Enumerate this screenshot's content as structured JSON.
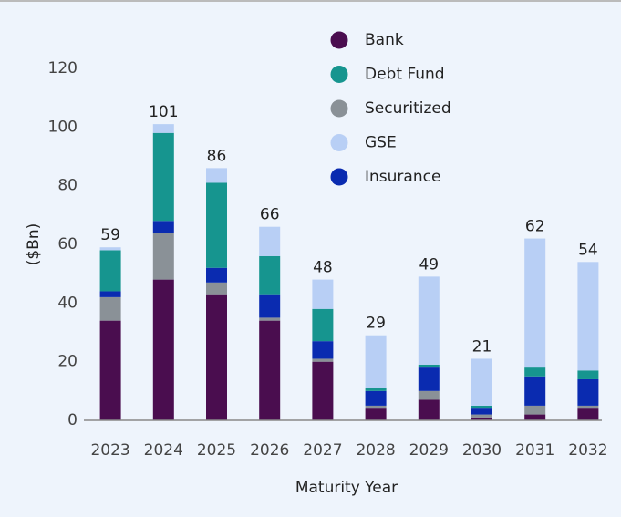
{
  "chart_data": {
    "type": "stacked_bar",
    "y_label": "($Bn)",
    "x_label": "Maturity Year",
    "categories": [
      "2023",
      "2024",
      "2025",
      "2026",
      "2027",
      "2028",
      "2029",
      "2030",
      "2031",
      "2032"
    ],
    "series": [
      {
        "name": "Bank",
        "color": "#4a0d4f",
        "values": [
          34,
          48,
          43,
          34,
          20,
          4,
          7,
          1,
          2,
          4
        ]
      },
      {
        "name": "Securitized",
        "color": "#8a9197",
        "values": [
          8,
          16,
          4,
          1,
          1,
          1,
          3,
          1,
          3,
          1
        ]
      },
      {
        "name": "Insurance",
        "color": "#0a2bb0",
        "values": [
          2,
          4,
          5,
          8,
          6,
          5,
          8,
          2,
          10,
          9
        ]
      },
      {
        "name": "Debt Fund",
        "color": "#16958f",
        "values": [
          14,
          30,
          29,
          13,
          11,
          1,
          1,
          1,
          3,
          3
        ]
      },
      {
        "name": "GSE",
        "color": "#b8cff5",
        "values": [
          1,
          3,
          5,
          10,
          10,
          18,
          30,
          16,
          44,
          37
        ]
      }
    ],
    "totals": [
      59,
      101,
      86,
      66,
      48,
      29,
      49,
      21,
      62,
      54
    ],
    "legend_order": [
      0,
      3,
      1,
      4,
      2
    ],
    "ylim": [
      0,
      120
    ],
    "yticks": [
      0,
      20,
      40,
      60,
      80,
      100,
      120
    ],
    "grid": false
  }
}
